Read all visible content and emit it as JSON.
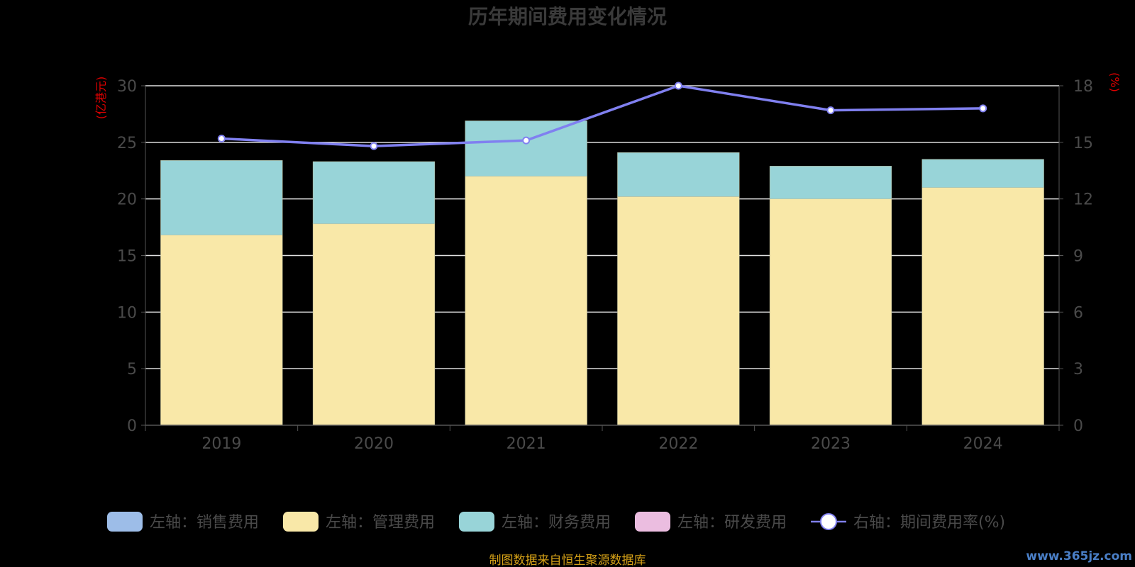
{
  "chart_data": {
    "type": "bar",
    "title": "历年期间费用变化情况",
    "categories": [
      "2019",
      "2020",
      "2021",
      "2022",
      "2023",
      "2024"
    ],
    "series": [
      {
        "name": "左轴：销售费用",
        "kind": "bar",
        "axis": "left",
        "color": "#9dbde8",
        "values": [
          0,
          0,
          0,
          0,
          0,
          0
        ]
      },
      {
        "name": "左轴：管理费用",
        "kind": "bar",
        "axis": "left",
        "color": "#f9e8a8",
        "values": [
          16.8,
          17.8,
          22.0,
          20.2,
          20.0,
          21.0
        ]
      },
      {
        "name": "左轴：财务费用",
        "kind": "bar",
        "axis": "left",
        "color": "#98d4d8",
        "values": [
          6.6,
          5.5,
          4.9,
          3.9,
          2.9,
          2.5
        ]
      },
      {
        "name": "左轴：研发费用",
        "kind": "bar",
        "axis": "left",
        "color": "#ebbde0",
        "values": [
          0,
          0,
          0,
          0,
          0,
          0
        ]
      },
      {
        "name": "右轴：期间费用率(%)",
        "kind": "line",
        "axis": "right",
        "color": "#8080f0",
        "values": [
          15.2,
          14.8,
          15.1,
          18.0,
          16.7,
          16.8
        ]
      }
    ],
    "left_axis": {
      "unit": "(亿港元)",
      "ylim": [
        0,
        30
      ],
      "ticks": [
        "0",
        "5",
        "10",
        "15",
        "20",
        "25",
        "30"
      ]
    },
    "right_axis": {
      "unit": "(%)",
      "ylim": [
        0,
        18
      ],
      "ticks": [
        "0",
        "3",
        "6",
        "9",
        "12",
        "15",
        "18"
      ]
    },
    "grid": true,
    "legend_position": "bottom",
    "stacked": true
  },
  "footer": {
    "source": "制图数据来自恒生聚源数据库",
    "watermark": "www.365jz.com"
  },
  "colors": {
    "background": "#000000",
    "gridline": "#e0e0e0",
    "text": "#4a4a4a",
    "unit": "#e00000",
    "source": "#d4a017"
  }
}
